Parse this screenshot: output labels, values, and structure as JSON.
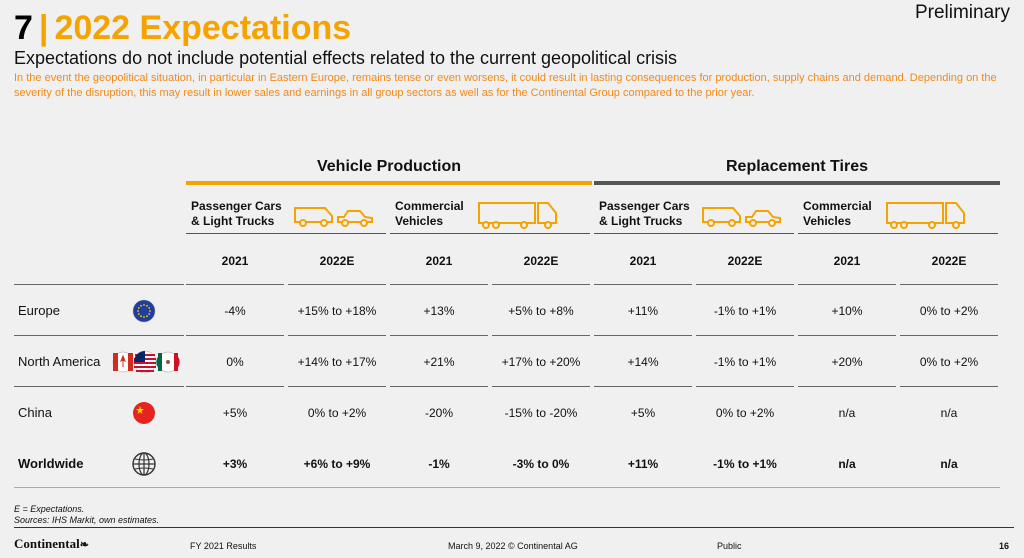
{
  "header": {
    "number": "7",
    "separator": "|",
    "title": "2022 Expectations",
    "status": "Preliminary",
    "subtitle": "Expectations do not include potential effects related to the current geopolitical crisis",
    "disclaimer": "In the event the geopolitical situation, in particular in Eastern Europe, remains tense or even worsens, it could result in lasting consequences for production, supply chains and demand. Depending on the severity of the disruption, this may result in lower sales and earnings in all group sectors as well as for the Continental Group compared to the prior year."
  },
  "groups": [
    "Vehicle Production",
    "Replacement Tires"
  ],
  "vehicle_types": [
    {
      "line1": "Passenger Cars",
      "line2": "& Light Trucks",
      "icon": "car-icon"
    },
    {
      "line1": "Commercial",
      "line2": "Vehicles",
      "icon": "truck-icon"
    },
    {
      "line1": "Passenger Cars",
      "line2": "& Light Trucks",
      "icon": "car-icon"
    },
    {
      "line1": "Commercial",
      "line2": "Vehicles",
      "icon": "truck-icon"
    }
  ],
  "years": [
    "2021",
    "2022E",
    "2021",
    "2022E",
    "2021",
    "2022E",
    "2021",
    "2022E"
  ],
  "rows": [
    {
      "region": "Europe",
      "icon": "eu-flag-icon",
      "values": [
        "-4%",
        "+15% to +18%",
        "+13%",
        "+5% to +8%",
        "+11%",
        "-1% to +1%",
        "+10%",
        "0% to +2%"
      ]
    },
    {
      "region": "North America",
      "icon": "north-america-flags-icon",
      "values": [
        "0%",
        "+14% to +17%",
        "+21%",
        "+17% to +20%",
        "+14%",
        "-1% to +1%",
        "+20%",
        "0% to +2%"
      ]
    },
    {
      "region": "China",
      "icon": "china-flag-icon",
      "values": [
        "+5%",
        "0% to +2%",
        "-20%",
        "-15% to -20%",
        "+5%",
        "0% to +2%",
        "n/a",
        "n/a"
      ]
    },
    {
      "region": "Worldwide",
      "icon": "globe-icon",
      "values": [
        "+3%",
        "+6% to +9%",
        "-1%",
        "-3% to 0%",
        "+11%",
        "-1% to +1%",
        "n/a",
        "n/a"
      ]
    }
  ],
  "footnotes": [
    "E = Expectations.",
    "Sources: IHS Markit, own estimates."
  ],
  "footer": {
    "logo": "Continental",
    "report": "FY 2021 Results",
    "date": "March 9, 2022 © Continental AG",
    "classification": "Public",
    "page": "16"
  },
  "colors": {
    "accent": "#f5a300",
    "disclaimer": "#f08a1c",
    "line_dark": "#555555",
    "background": "#f0f0f0"
  }
}
